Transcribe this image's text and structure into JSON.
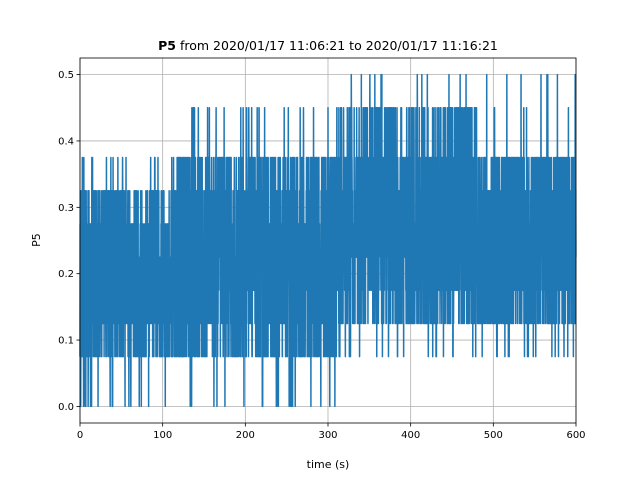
{
  "chart_data": {
    "type": "line",
    "title_bold": "P5",
    "title_rest": " from 2020/01/17 11:06:21 to 2020/01/17 11:16:21",
    "xlabel": "time (s)",
    "ylabel": "P5",
    "xlim": [
      0,
      600
    ],
    "ylim": [
      -0.025,
      0.525
    ],
    "xticks": [
      0,
      100,
      200,
      300,
      400,
      500,
      600
    ],
    "yticks": [
      0.0,
      0.1,
      0.2,
      0.3,
      0.4,
      0.5
    ],
    "grid": true,
    "series_color": "#1f77b4",
    "series": [
      {
        "levels": [
          0.0,
          0.075,
          0.125,
          0.175,
          0.225,
          0.275,
          0.325,
          0.375,
          0.45,
          0.5
        ],
        "segments": [
          {
            "x": [
              0,
              60
            ],
            "band": [
              0.075,
              0.325
            ],
            "spikes_high": [
              0.375
            ],
            "spikes_low": [
              0.0
            ]
          },
          {
            "x": [
              60,
              120
            ],
            "band": [
              0.075,
              0.325
            ],
            "spikes_high": [
              0.375
            ],
            "spikes_low": [
              0.0
            ]
          },
          {
            "x": [
              120,
              200
            ],
            "band": [
              0.075,
              0.375
            ],
            "spikes_high": [
              0.45
            ],
            "spikes_low": [
              0.0
            ]
          },
          {
            "x": [
              200,
              310
            ],
            "band": [
              0.075,
              0.375
            ],
            "spikes_high": [
              0.45
            ],
            "spikes_low": [
              0.0
            ]
          },
          {
            "x": [
              310,
              480
            ],
            "band": [
              0.125,
              0.45
            ],
            "spikes_high": [
              0.5
            ],
            "spikes_low": [
              0.075
            ]
          },
          {
            "x": [
              480,
              600
            ],
            "band": [
              0.125,
              0.375
            ],
            "spikes_high": [
              0.45,
              0.5
            ],
            "spikes_low": [
              0.075
            ]
          }
        ]
      }
    ]
  }
}
